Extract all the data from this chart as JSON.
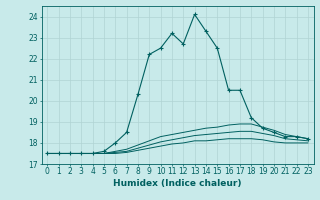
{
  "xlabel": "Humidex (Indice chaleur)",
  "ylabel": "",
  "background_color": "#c8eaea",
  "grid_color": "#b0d4d4",
  "line_color": "#006060",
  "xlim": [
    -0.5,
    23.5
  ],
  "ylim": [
    17,
    24.5
  ],
  "yticks": [
    17,
    18,
    19,
    20,
    21,
    22,
    23,
    24
  ],
  "xticks": [
    0,
    1,
    2,
    3,
    4,
    5,
    6,
    7,
    8,
    9,
    10,
    11,
    12,
    13,
    14,
    15,
    16,
    17,
    18,
    19,
    20,
    21,
    22,
    23
  ],
  "line1_x": [
    0,
    1,
    2,
    3,
    4,
    5,
    6,
    7,
    8,
    9,
    10,
    11,
    12,
    13,
    14,
    15,
    16,
    17,
    18,
    19,
    20,
    21,
    22,
    23
  ],
  "line1_y": [
    17.5,
    17.5,
    17.5,
    17.5,
    17.5,
    17.6,
    18.0,
    18.5,
    20.3,
    22.2,
    22.5,
    23.2,
    22.7,
    24.1,
    23.3,
    22.5,
    20.5,
    20.5,
    19.2,
    18.7,
    18.5,
    18.3,
    18.3,
    18.2
  ],
  "line2_x": [
    0,
    1,
    2,
    3,
    4,
    5,
    6,
    7,
    8,
    9,
    10,
    11,
    12,
    13,
    14,
    15,
    16,
    17,
    18,
    19,
    20,
    21,
    22,
    23
  ],
  "line2_y": [
    17.5,
    17.5,
    17.5,
    17.5,
    17.5,
    17.5,
    17.6,
    17.7,
    17.9,
    18.1,
    18.3,
    18.4,
    18.5,
    18.6,
    18.7,
    18.75,
    18.85,
    18.9,
    18.9,
    18.75,
    18.6,
    18.4,
    18.3,
    18.2
  ],
  "line3_x": [
    0,
    1,
    2,
    3,
    4,
    5,
    6,
    7,
    8,
    9,
    10,
    11,
    12,
    13,
    14,
    15,
    16,
    17,
    18,
    19,
    20,
    21,
    22,
    23
  ],
  "line3_y": [
    17.5,
    17.5,
    17.5,
    17.5,
    17.5,
    17.5,
    17.55,
    17.6,
    17.75,
    17.9,
    18.05,
    18.15,
    18.25,
    18.35,
    18.4,
    18.45,
    18.5,
    18.55,
    18.55,
    18.45,
    18.35,
    18.2,
    18.15,
    18.1
  ],
  "line4_x": [
    0,
    1,
    2,
    3,
    4,
    5,
    6,
    7,
    8,
    9,
    10,
    11,
    12,
    13,
    14,
    15,
    16,
    17,
    18,
    19,
    20,
    21,
    22,
    23
  ],
  "line4_y": [
    17.5,
    17.5,
    17.5,
    17.5,
    17.5,
    17.5,
    17.5,
    17.55,
    17.65,
    17.75,
    17.85,
    17.95,
    18.0,
    18.1,
    18.1,
    18.15,
    18.2,
    18.2,
    18.2,
    18.15,
    18.05,
    18.0,
    18.0,
    18.0
  ]
}
